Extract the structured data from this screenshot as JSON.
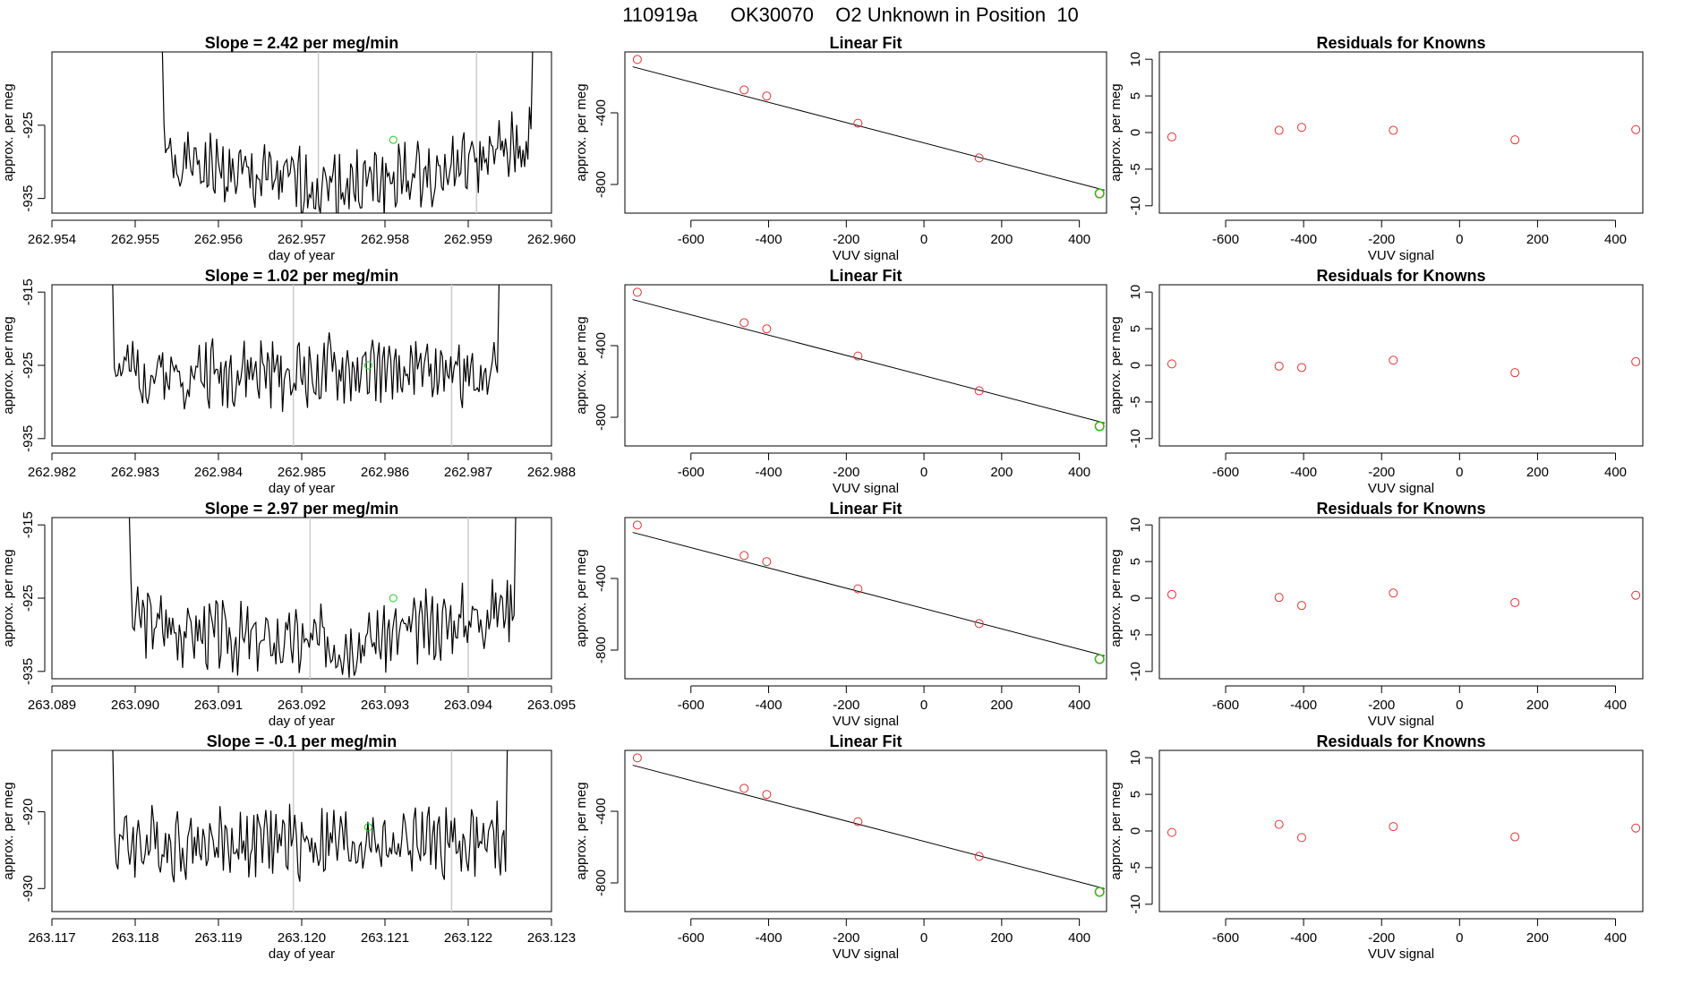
{
  "page": {
    "title": "110919a      OK30070    O2 Unknown in Position  10"
  },
  "colors": {
    "trace": "#000000",
    "unknown": "#22cc22",
    "residual": "#dd3333",
    "vline": "#cccccc",
    "fitline": "#000000"
  },
  "chart_data": [
    {
      "type": "line",
      "panel": "timeseries",
      "title": "Slope =  2.42  per meg/min",
      "xlabel": "day of year",
      "ylabel": "approx. per meg",
      "xlim": [
        262.954,
        262.96
      ],
      "ylim": [
        -937,
        -915
      ],
      "xticks": [
        "262.954",
        "262.955",
        "262.956",
        "262.957",
        "262.958",
        "262.959",
        "262.960"
      ],
      "yticks": [
        "-925",
        "-935"
      ],
      "ytick_values": [
        -925,
        -935
      ],
      "x_start": 262.95525,
      "x_end": 262.95985,
      "vlines": [
        262.9572,
        262.9591
      ],
      "unknown_point": [
        262.9581,
        -927
      ],
      "trace_shape": "u",
      "trace_center": -931,
      "trace_seed": 1
    },
    {
      "type": "scatter",
      "panel": "linearfit",
      "title": "Linear Fit",
      "xlabel": "VUV signal",
      "ylabel": "approx. per meg",
      "xlim": [
        -770,
        470
      ],
      "ylim": [
        -960,
        -60
      ],
      "xticks": [
        "-600",
        "-400",
        "-200",
        "0",
        "200",
        "400"
      ],
      "xtick_values": [
        -600,
        -400,
        -200,
        0,
        200,
        400
      ],
      "yticks": [
        "-400",
        "-800"
      ],
      "ytick_values": [
        -400,
        -800
      ],
      "known_points": {
        "x": [
          -738,
          -463,
          -405,
          -170,
          142,
          452
        ],
        "y": [
          -102,
          -272,
          -306,
          -458,
          -652,
          -850
        ]
      },
      "unknown_point": [
        452,
        -850
      ],
      "fit": {
        "slope": -0.567,
        "intercept": -568
      }
    },
    {
      "type": "scatter",
      "panel": "residuals",
      "title": "Residuals for Knowns",
      "xlabel": "VUV signal",
      "ylabel": "approx. per meg",
      "xlim": [
        -770,
        470
      ],
      "ylim": [
        -11,
        11
      ],
      "xticks": [
        "-600",
        "-400",
        "-200",
        "0",
        "200",
        "400"
      ],
      "xtick_values": [
        -600,
        -400,
        -200,
        0,
        200,
        400
      ],
      "yticks": [
        "10",
        "5",
        "0",
        "-5",
        "-10"
      ],
      "ytick_values": [
        10,
        5,
        0,
        -5,
        -10
      ],
      "residuals": {
        "x": [
          -738,
          -463,
          -405,
          -170,
          142,
          452
        ],
        "y": [
          -0.6,
          0.3,
          0.7,
          0.3,
          -1.0,
          0.4
        ]
      }
    },
    {
      "type": "line",
      "panel": "timeseries",
      "title": "Slope =  1.02  per meg/min",
      "xlabel": "day of year",
      "ylabel": "approx. per meg",
      "xlim": [
        262.982,
        262.988
      ],
      "ylim": [
        -936,
        -914
      ],
      "xticks": [
        "262.982",
        "262.983",
        "262.984",
        "262.985",
        "262.986",
        "262.987",
        "262.988"
      ],
      "yticks": [
        "-915",
        "-925",
        "-935"
      ],
      "ytick_values": [
        -915,
        -925,
        -935
      ],
      "x_start": 262.98265,
      "x_end": 262.98745,
      "vlines": [
        262.9849,
        262.9868
      ],
      "unknown_point": [
        262.9858,
        -925
      ],
      "trace_shape": "flat",
      "trace_center": -926,
      "trace_seed": 2
    },
    {
      "type": "scatter",
      "panel": "linearfit",
      "title": "Linear Fit",
      "xlabel": "VUV signal",
      "ylabel": "approx. per meg",
      "xlim": [
        -770,
        470
      ],
      "ylim": [
        -960,
        -60
      ],
      "xticks": [
        "-600",
        "-400",
        "-200",
        "0",
        "200",
        "400"
      ],
      "xtick_values": [
        -600,
        -400,
        -200,
        0,
        200,
        400
      ],
      "yticks": [
        "-400",
        "-800"
      ],
      "ytick_values": [
        -400,
        -800
      ],
      "known_points": {
        "x": [
          -738,
          -463,
          -405,
          -170,
          142,
          452
        ],
        "y": [
          -102,
          -272,
          -306,
          -458,
          -652,
          -850
        ]
      },
      "unknown_point": [
        452,
        -850
      ],
      "fit": {
        "slope": -0.567,
        "intercept": -568
      }
    },
    {
      "type": "scatter",
      "panel": "residuals",
      "title": "Residuals for Knowns",
      "xlabel": "VUV signal",
      "ylabel": "approx. per meg",
      "xlim": [
        -770,
        470
      ],
      "ylim": [
        -11,
        11
      ],
      "xticks": [
        "-600",
        "-400",
        "-200",
        "0",
        "200",
        "400"
      ],
      "xtick_values": [
        -600,
        -400,
        -200,
        0,
        200,
        400
      ],
      "yticks": [
        "10",
        "5",
        "0",
        "-5",
        "-10"
      ],
      "ytick_values": [
        10,
        5,
        0,
        -5,
        -10
      ],
      "residuals": {
        "x": [
          -738,
          -463,
          -405,
          -170,
          142,
          452
        ],
        "y": [
          0.2,
          -0.1,
          -0.3,
          0.7,
          -1.0,
          0.5
        ]
      }
    },
    {
      "type": "line",
      "panel": "timeseries",
      "title": "Slope =  2.97  per meg/min",
      "xlabel": "day of year",
      "ylabel": "approx. per meg",
      "xlim": [
        263.089,
        263.095
      ],
      "ylim": [
        -936,
        -914
      ],
      "xticks": [
        "263.089",
        "263.090",
        "263.091",
        "263.092",
        "263.093",
        "263.094",
        "263.095"
      ],
      "yticks": [
        "-915",
        "-925",
        "-935"
      ],
      "ytick_values": [
        -915,
        -925,
        -935
      ],
      "x_start": 263.08985,
      "x_end": 263.09465,
      "vlines": [
        263.0921,
        263.094
      ],
      "unknown_point": [
        263.0931,
        -925
      ],
      "trace_shape": "u",
      "trace_center": -929,
      "trace_seed": 3
    },
    {
      "type": "scatter",
      "panel": "linearfit",
      "title": "Linear Fit",
      "xlabel": "VUV signal",
      "ylabel": "approx. per meg",
      "xlim": [
        -770,
        470
      ],
      "ylim": [
        -960,
        -60
      ],
      "xticks": [
        "-600",
        "-400",
        "-200",
        "0",
        "200",
        "400"
      ],
      "xtick_values": [
        -600,
        -400,
        -200,
        0,
        200,
        400
      ],
      "yticks": [
        "-400",
        "-800"
      ],
      "ytick_values": [
        -400,
        -800
      ],
      "known_points": {
        "x": [
          -738,
          -463,
          -405,
          -170,
          142,
          452
        ],
        "y": [
          -102,
          -272,
          -306,
          -458,
          -652,
          -850
        ]
      },
      "unknown_point": [
        452,
        -850
      ],
      "fit": {
        "slope": -0.567,
        "intercept": -568
      }
    },
    {
      "type": "scatter",
      "panel": "residuals",
      "title": "Residuals for Knowns",
      "xlabel": "VUV signal",
      "ylabel": "approx. per meg",
      "xlim": [
        -770,
        470
      ],
      "ylim": [
        -11,
        11
      ],
      "xticks": [
        "-600",
        "-400",
        "-200",
        "0",
        "200",
        "400"
      ],
      "xtick_values": [
        -600,
        -400,
        -200,
        0,
        200,
        400
      ],
      "yticks": [
        "10",
        "5",
        "0",
        "-5",
        "-10"
      ],
      "ytick_values": [
        10,
        5,
        0,
        -5,
        -10
      ],
      "residuals": {
        "x": [
          -738,
          -463,
          -405,
          -170,
          142,
          452
        ],
        "y": [
          0.5,
          0.1,
          -1.0,
          0.7,
          -0.6,
          0.4
        ]
      }
    },
    {
      "type": "line",
      "panel": "timeseries",
      "title": "Slope =  -0.1  per meg/min",
      "xlabel": "day of year",
      "ylabel": "approx. per meg",
      "xlim": [
        263.117,
        263.123
      ],
      "ylim": [
        -933,
        -912
      ],
      "xticks": [
        "263.117",
        "263.118",
        "263.119",
        "263.120",
        "263.121",
        "263.122",
        "263.123"
      ],
      "yticks": [
        "-920",
        "-930"
      ],
      "ytick_values": [
        -920,
        -930
      ],
      "x_start": 263.11765,
      "x_end": 263.12255,
      "vlines": [
        263.1199,
        263.1218
      ],
      "unknown_point": [
        263.1208,
        -922
      ],
      "trace_shape": "flat",
      "trace_center": -924,
      "trace_seed": 4
    },
    {
      "type": "scatter",
      "panel": "linearfit",
      "title": "Linear Fit",
      "xlabel": "VUV signal",
      "ylabel": "approx. per meg",
      "xlim": [
        -770,
        470
      ],
      "ylim": [
        -960,
        -60
      ],
      "xticks": [
        "-600",
        "-400",
        "-200",
        "0",
        "200",
        "400"
      ],
      "xtick_values": [
        -600,
        -400,
        -200,
        0,
        200,
        400
      ],
      "yticks": [
        "-400",
        "-800"
      ],
      "ytick_values": [
        -400,
        -800
      ],
      "known_points": {
        "x": [
          -738,
          -463,
          -405,
          -170,
          142,
          452
        ],
        "y": [
          -102,
          -272,
          -306,
          -458,
          -652,
          -850
        ]
      },
      "unknown_point": [
        452,
        -850
      ],
      "fit": {
        "slope": -0.567,
        "intercept": -568
      }
    },
    {
      "type": "scatter",
      "panel": "residuals",
      "title": "Residuals for Knowns",
      "xlabel": "VUV signal",
      "ylabel": "approx. per meg",
      "xlim": [
        -770,
        470
      ],
      "ylim": [
        -11,
        11
      ],
      "xticks": [
        "-600",
        "-400",
        "-200",
        "0",
        "200",
        "400"
      ],
      "xtick_values": [
        -600,
        -400,
        -200,
        0,
        200,
        400
      ],
      "yticks": [
        "10",
        "5",
        "0",
        "-5",
        "-10"
      ],
      "ytick_values": [
        10,
        5,
        0,
        -5,
        -10
      ],
      "residuals": {
        "x": [
          -738,
          -463,
          -405,
          -170,
          142,
          452
        ],
        "y": [
          -0.2,
          0.9,
          -0.9,
          0.6,
          -0.8,
          0.4
        ]
      }
    }
  ]
}
